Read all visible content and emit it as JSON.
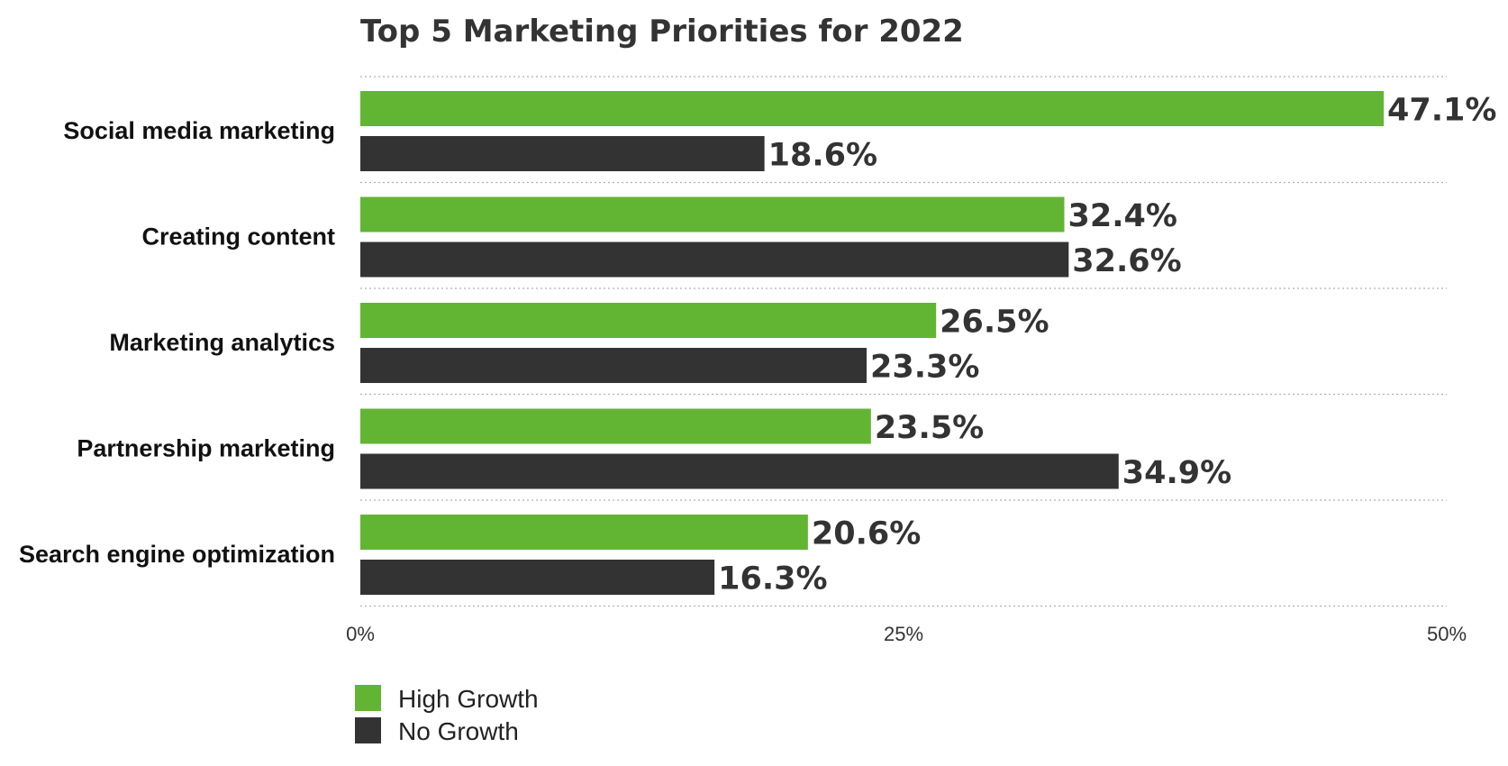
{
  "chart_data": {
    "type": "bar",
    "orientation": "horizontal",
    "title": "Top 5 Marketing Priorities for 2022",
    "categories": [
      "Social media marketing",
      "Creating content",
      "Marketing analytics",
      "Partnership marketing",
      "Search engine optimization"
    ],
    "series": [
      {
        "name": "High Growth",
        "color": "#62b533",
        "values": [
          47.1,
          32.4,
          26.5,
          23.5,
          20.6
        ],
        "labels": [
          "47.1%",
          "32.4%",
          "26.5%",
          "23.5%",
          "20.6%"
        ]
      },
      {
        "name": "No Growth",
        "color": "#333333",
        "values": [
          18.6,
          32.6,
          23.3,
          34.9,
          16.3
        ],
        "labels": [
          "18.6%",
          "32.6%",
          "23.3%",
          "34.9%",
          "16.3%"
        ]
      }
    ],
    "xlim": [
      0,
      50
    ],
    "xticks": [
      "0%",
      "25%",
      "50%"
    ],
    "grid": true,
    "legend": "bottom-left"
  }
}
